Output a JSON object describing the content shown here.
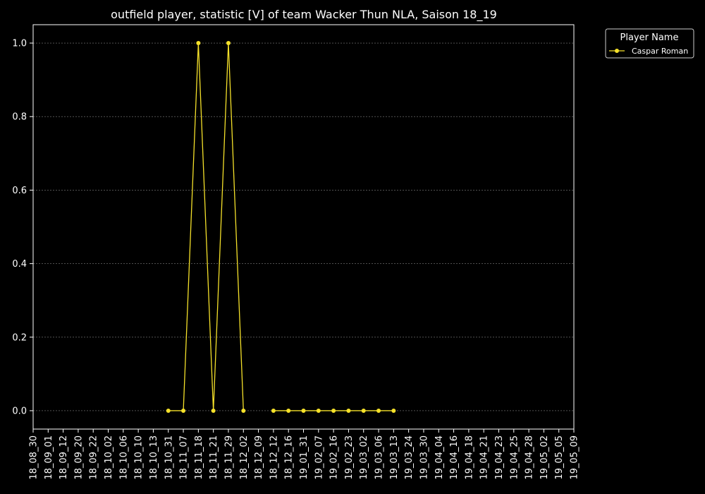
{
  "chart_data": {
    "type": "line",
    "title": "outfield player, statistic [V] of team Wacker Thun NLA, Saison 18_19",
    "xlabel": "",
    "ylabel": "",
    "x": [
      "18_08_30",
      "18_09_01",
      "18_09_12",
      "18_09_20",
      "18_09_22",
      "18_10_02",
      "18_10_06",
      "18_10_10",
      "18_10_13",
      "18_10_31",
      "18_11_07",
      "18_11_18",
      "18_11_21",
      "18_11_29",
      "18_12_02",
      "18_12_09",
      "18_12_12",
      "18_12_16",
      "19_01_31",
      "19_02_07",
      "19_02_16",
      "19_02_23",
      "19_03_02",
      "19_03_06",
      "19_03_13",
      "19_03_24",
      "19_03_30",
      "19_04_04",
      "19_04_16",
      "19_04_18",
      "19_04_21",
      "19_04_23",
      "19_04_25",
      "19_04_28",
      "19_05_02",
      "19_05_05",
      "19_05_09"
    ],
    "series": [
      {
        "name": "Caspar Roman",
        "color": "#f5e12a",
        "values": [
          null,
          null,
          null,
          null,
          null,
          null,
          null,
          null,
          null,
          0,
          0,
          1,
          0,
          1,
          0,
          null,
          0,
          0,
          0,
          0,
          0,
          0,
          0,
          0,
          0,
          null,
          null,
          null,
          null,
          null,
          null,
          null,
          null,
          null,
          null,
          null,
          null
        ]
      }
    ],
    "y_ticks": [
      "0.0",
      "0.2",
      "0.4",
      "0.6",
      "0.8",
      "1.0"
    ],
    "y_tick_values": [
      0,
      0.2,
      0.4,
      0.6,
      0.8,
      1.0
    ],
    "ylim": [
      -0.05,
      1.05
    ],
    "grid": "horizontal dashed",
    "legend": {
      "title": "Player Name",
      "placement": "outside top-right"
    },
    "colors": {
      "background": "#000000",
      "axes": "#ffffff",
      "grid": "#808080",
      "text": "#ffffff"
    }
  }
}
